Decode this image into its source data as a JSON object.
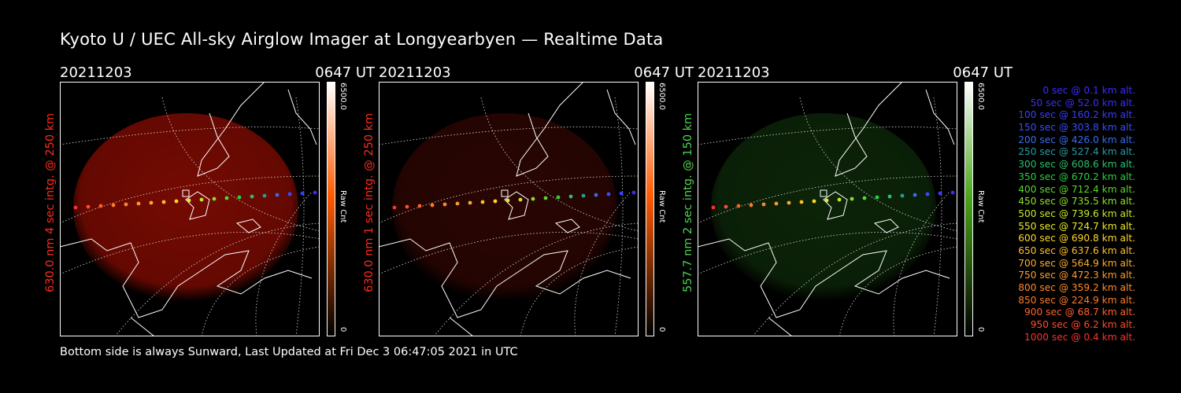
{
  "title": "Kyoto U / UEC All-sky Airglow Imager at Longyearbyen — Realtime Data",
  "footer": "Bottom side is always Sunward, Last Updated at Fri Dec  3 06:47:05 2021 in UTC",
  "panels": [
    {
      "date": "20211203",
      "time": "0647 UT",
      "ylabel": "630.0 nm  4 sec intg. @ 250 km",
      "label_color": "#ff2a1a",
      "cbar_max": "6500.0",
      "cbar_min": "0",
      "cbar_unit": "Raw Cnt",
      "cbar_color": "#ff5a00",
      "glow_color": "#8a0c02",
      "glow_level": 0.85
    },
    {
      "date": "20211203",
      "time": "0647 UT",
      "ylabel": "630.0 nm  1 sec intg. @ 250 km",
      "label_color": "#ff2a1a",
      "cbar_max": "6500.0",
      "cbar_min": "0",
      "cbar_unit": "Raw Cnt",
      "cbar_color": "#ff5a00",
      "glow_color": "#2e0602",
      "glow_level": 0.9
    },
    {
      "date": "20211203",
      "time": "0647 UT",
      "ylabel": "557.7 nm  2 sec intg. @ 150 km",
      "label_color": "#4fd44f",
      "cbar_max": "6500.0",
      "cbar_min": "0",
      "cbar_unit": "Raw Cnt",
      "cbar_color": "#4aa61a",
      "glow_color": "#0f2d0a",
      "glow_level": 0.8
    }
  ],
  "legend": [
    {
      "text": "0 sec @    0.1 km alt.",
      "color": "#3a2cff"
    },
    {
      "text": "50 sec @   52.0 km alt.",
      "color": "#3a2cff"
    },
    {
      "text": "100 sec @  160.2 km alt.",
      "color": "#3a3cff"
    },
    {
      "text": "150 sec @  303.8 km alt.",
      "color": "#3a4cff"
    },
    {
      "text": "200 sec @  426.0 km alt.",
      "color": "#3a6cf0"
    },
    {
      "text": "250 sec @  527.4 km alt.",
      "color": "#2a9aa0"
    },
    {
      "text": "300 sec @  608.6 km alt.",
      "color": "#2ac070"
    },
    {
      "text": "350 sec @  670.2 km alt.",
      "color": "#2ad040"
    },
    {
      "text": "400 sec @  712.4 km alt.",
      "color": "#5ad82a"
    },
    {
      "text": "450 sec @  735.5 km alt.",
      "color": "#8ae02a"
    },
    {
      "text": "500 sec @  739.6 km alt.",
      "color": "#c6e82a"
    },
    {
      "text": "550 sec @  724.7 km alt.",
      "color": "#eaea2a"
    },
    {
      "text": "600 sec @  690.8 km alt.",
      "color": "#ffd82a"
    },
    {
      "text": "650 sec @  637.6 km alt.",
      "color": "#ffc02a"
    },
    {
      "text": "700 sec @  564.9 km alt.",
      "color": "#ffaa2a"
    },
    {
      "text": "750 sec @  472.3 km alt.",
      "color": "#ff9a2a"
    },
    {
      "text": "800 sec @  359.2 km alt.",
      "color": "#ff8a2a"
    },
    {
      "text": "850 sec @  224.9 km alt.",
      "color": "#ff7a2a"
    },
    {
      "text": "900 sec @   68.7 km alt.",
      "color": "#ff622a"
    },
    {
      "text": "950 sec @    6.2 km alt.",
      "color": "#ff4a2a"
    },
    {
      "text": "1000 sec @    0.4 km alt.",
      "color": "#ff302a"
    }
  ]
}
